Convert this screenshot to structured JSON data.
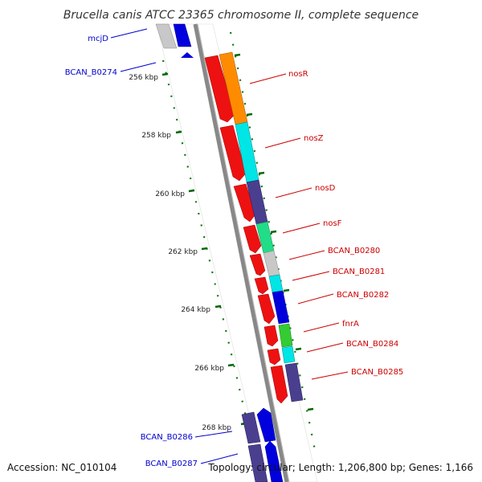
{
  "title": "Brucella canis ATCC 23365 chromosome II, complete sequence",
  "accession": "Accession: NC_010104",
  "topology": "Topology: circular; Length: 1,206,800 bp; Genes: 1,166",
  "ticks": [
    "256 kbp",
    "258 kbp",
    "260 kbp",
    "262 kbp",
    "264 kbp",
    "266 kbp",
    "268 kbp"
  ],
  "genes": {
    "mcjD": "mcjD",
    "bcan_b0274": "BCAN_B0274",
    "nosR": "nosR",
    "nosZ": "nosZ",
    "nosD": "nosD",
    "nosF": "nosF",
    "bcan_b0280": "BCAN_B0280",
    "bcan_b0281": "BCAN_B0281",
    "bcan_b0282": "BCAN_B0282",
    "fnrA": "fnrA",
    "bcan_b0284": "BCAN_B0284",
    "bcan_b0285": "BCAN_B0285",
    "bcan_b0286": "BCAN_B0286",
    "bcan_b0287": "BCAN_B0287"
  },
  "colors": {
    "cds_red": "#ee1111",
    "orange": "#ff8c00",
    "cyan": "#00e5e5",
    "slate": "#4a3f8f",
    "green_teal": "#22dd88",
    "light_gray": "#c8c8c8",
    "blue": "#0000dd",
    "green": "#33cc33",
    "tick_green": "#007700",
    "backbone": "#888888"
  }
}
